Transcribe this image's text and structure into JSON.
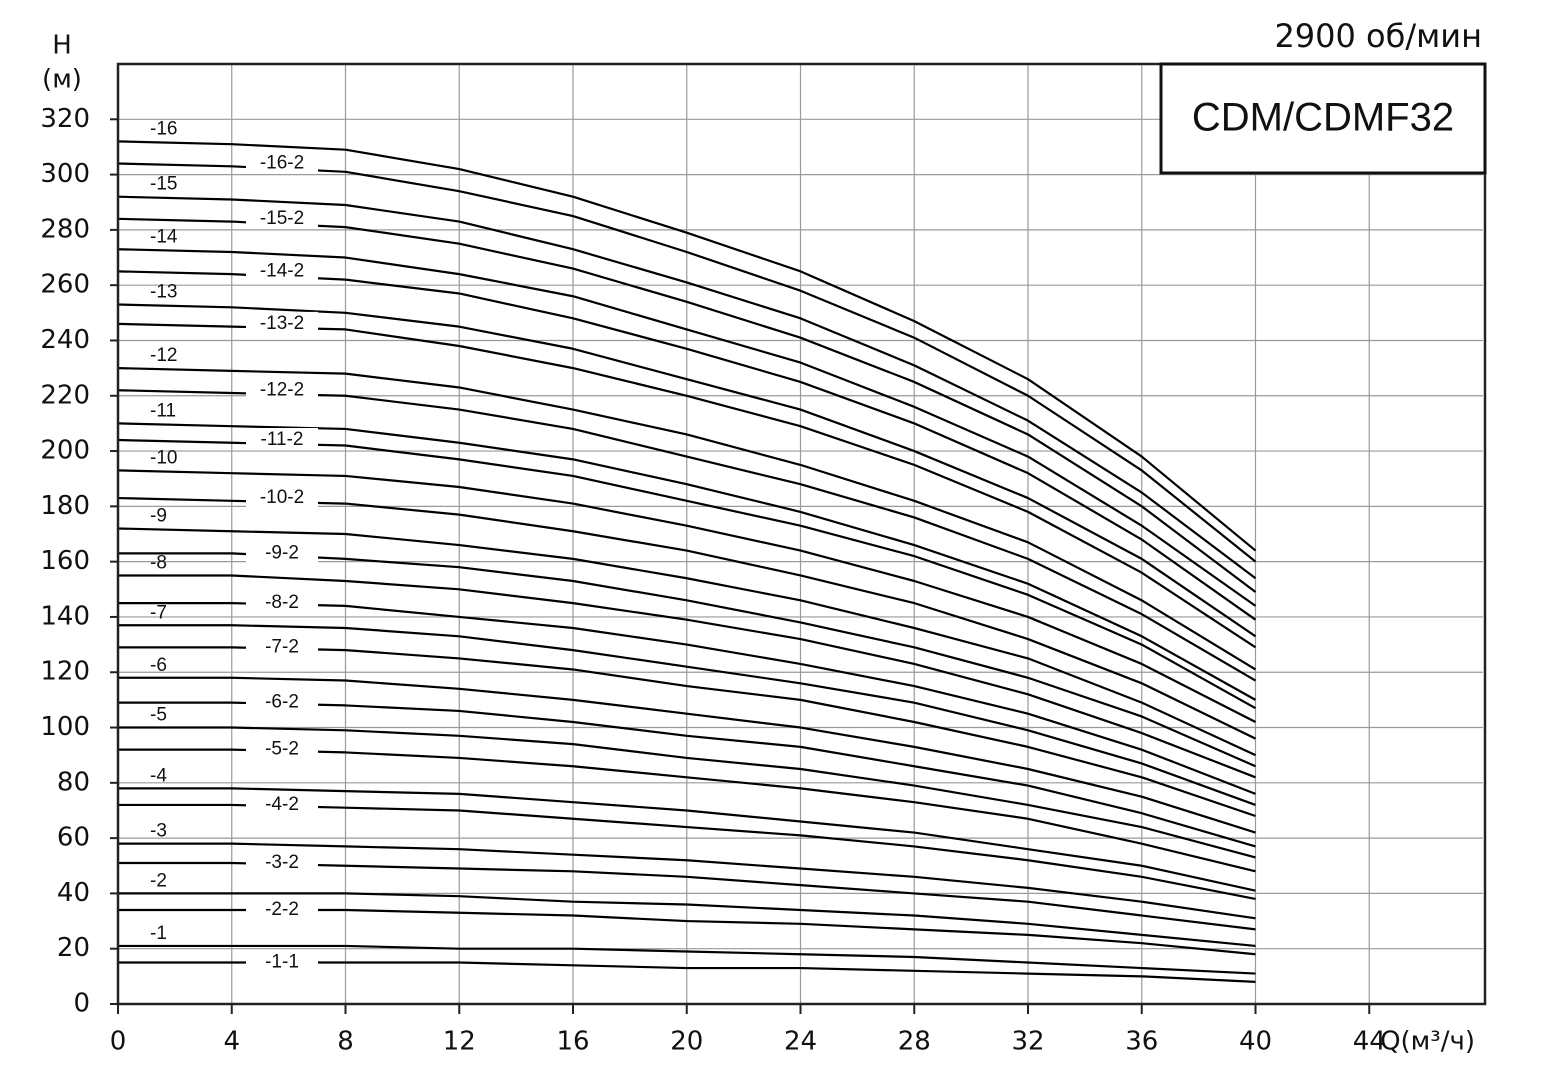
{
  "chart_data": {
    "type": "line",
    "title": "CDM/CDMF32",
    "subtitle": "2900 об/мин",
    "ylabel": [
      "H",
      "(м)"
    ],
    "xlabel": "Q(м³/ч)",
    "x": [
      0,
      4,
      8,
      12,
      16,
      20,
      24,
      28,
      32,
      36,
      40
    ],
    "xlim": [
      0,
      48
    ],
    "xticks": [
      0,
      4,
      8,
      12,
      16,
      20,
      24,
      28,
      32,
      36,
      40,
      44
    ],
    "ylim": [
      0,
      340
    ],
    "yticks": [
      0,
      20,
      40,
      60,
      80,
      100,
      120,
      140,
      160,
      180,
      200,
      220,
      240,
      260,
      280,
      300,
      320
    ],
    "grid": true,
    "series": [
      {
        "name": "-16",
        "color": "#000000",
        "values": [
          312,
          311,
          309,
          302,
          292,
          279,
          265,
          247,
          226,
          198,
          164
        ]
      },
      {
        "name": "-16-2",
        "color": "#000000",
        "values": [
          304,
          303,
          301,
          294,
          285,
          272,
          258,
          241,
          220,
          193,
          160
        ]
      },
      {
        "name": "-15",
        "color": "#000000",
        "values": [
          292,
          291,
          289,
          283,
          273,
          261,
          248,
          231,
          211,
          185,
          154
        ]
      },
      {
        "name": "-15-2",
        "color": "#000000",
        "values": [
          284,
          283,
          281,
          275,
          266,
          254,
          241,
          225,
          206,
          180,
          149
        ]
      },
      {
        "name": "-14",
        "color": "#000000",
        "values": [
          273,
          272,
          270,
          264,
          256,
          244,
          232,
          216,
          198,
          173,
          144
        ]
      },
      {
        "name": "-14-2",
        "color": "#000000",
        "values": [
          265,
          264,
          262,
          257,
          248,
          237,
          225,
          210,
          192,
          168,
          139
        ]
      },
      {
        "name": "-13",
        "color": "#000000",
        "values": [
          253,
          252,
          250,
          245,
          237,
          226,
          215,
          200,
          183,
          161,
          133
        ]
      },
      {
        "name": "-13-2",
        "color": "#000000",
        "values": [
          246,
          245,
          244,
          238,
          230,
          220,
          209,
          195,
          178,
          156,
          129
        ]
      },
      {
        "name": "-12",
        "color": "#000000",
        "values": [
          230,
          229,
          228,
          223,
          215,
          206,
          195,
          182,
          167,
          146,
          121
        ]
      },
      {
        "name": "-12-2",
        "color": "#000000",
        "values": [
          222,
          221,
          220,
          215,
          208,
          198,
          188,
          176,
          161,
          141,
          117
        ]
      },
      {
        "name": "-11",
        "color": "#000000",
        "values": [
          210,
          209,
          208,
          203,
          197,
          188,
          178,
          166,
          152,
          133,
          110
        ]
      },
      {
        "name": "-11-2",
        "color": "#000000",
        "values": [
          204,
          203,
          202,
          197,
          191,
          182,
          173,
          162,
          148,
          130,
          107
        ]
      },
      {
        "name": "-10",
        "color": "#000000",
        "values": [
          193,
          192,
          191,
          187,
          181,
          173,
          164,
          153,
          140,
          123,
          102
        ]
      },
      {
        "name": "-10-2",
        "color": "#000000",
        "values": [
          183,
          182,
          181,
          177,
          171,
          164,
          155,
          145,
          132,
          116,
          96
        ]
      },
      {
        "name": "-9",
        "color": "#000000",
        "values": [
          172,
          171,
          170,
          166,
          161,
          154,
          146,
          136,
          125,
          109,
          90
        ]
      },
      {
        "name": "-9-2",
        "color": "#000000",
        "values": [
          163,
          163,
          161,
          158,
          153,
          146,
          138,
          129,
          118,
          104,
          86
        ]
      },
      {
        "name": "-8",
        "color": "#000000",
        "values": [
          155,
          155,
          153,
          150,
          145,
          139,
          132,
          123,
          112,
          98,
          82
        ]
      },
      {
        "name": "-8-2",
        "color": "#000000",
        "values": [
          145,
          145,
          144,
          140,
          136,
          130,
          123,
          115,
          105,
          92,
          76
        ]
      },
      {
        "name": "-7",
        "color": "#000000",
        "values": [
          137,
          137,
          136,
          133,
          128,
          122,
          116,
          109,
          99,
          87,
          72
        ]
      },
      {
        "name": "-7-2",
        "color": "#000000",
        "values": [
          129,
          129,
          128,
          125,
          121,
          115,
          110,
          102,
          93,
          82,
          68
        ]
      },
      {
        "name": "-6",
        "color": "#000000",
        "values": [
          118,
          118,
          117,
          114,
          110,
          105,
          100,
          93,
          85,
          75,
          62
        ]
      },
      {
        "name": "-6-2",
        "color": "#000000",
        "values": [
          109,
          109,
          108,
          106,
          102,
          97,
          93,
          86,
          79,
          69,
          57
        ]
      },
      {
        "name": "-5",
        "color": "#000000",
        "values": [
          100,
          100,
          99,
          97,
          94,
          89,
          85,
          79,
          72,
          64,
          53
        ]
      },
      {
        "name": "-5-2",
        "color": "#000000",
        "values": [
          92,
          92,
          91,
          89,
          86,
          82,
          78,
          73,
          67,
          58,
          48
        ]
      },
      {
        "name": "-4",
        "color": "#000000",
        "values": [
          78,
          78,
          77,
          76,
          73,
          70,
          66,
          62,
          56,
          50,
          41
        ]
      },
      {
        "name": "-4-2",
        "color": "#000000",
        "values": [
          72,
          72,
          71,
          70,
          67,
          64,
          61,
          57,
          52,
          46,
          38
        ]
      },
      {
        "name": "-3",
        "color": "#000000",
        "values": [
          58,
          58,
          57,
          56,
          54,
          52,
          49,
          46,
          42,
          37,
          31
        ]
      },
      {
        "name": "-3-2",
        "color": "#000000",
        "values": [
          51,
          51,
          50,
          49,
          48,
          46,
          43,
          40,
          37,
          32,
          27
        ]
      },
      {
        "name": "-2",
        "color": "#000000",
        "values": [
          40,
          40,
          40,
          39,
          37,
          36,
          34,
          32,
          29,
          25,
          21
        ]
      },
      {
        "name": "-2-2",
        "color": "#000000",
        "values": [
          34,
          34,
          34,
          33,
          32,
          30,
          29,
          27,
          25,
          22,
          18
        ]
      },
      {
        "name": "-1",
        "color": "#000000",
        "values": [
          21,
          21,
          21,
          20,
          20,
          19,
          18,
          17,
          15,
          13,
          11
        ]
      },
      {
        "name": "-1-1",
        "color": "#000000",
        "values": [
          15,
          15,
          15,
          15,
          14,
          13,
          13,
          12,
          11,
          10,
          8
        ]
      }
    ]
  }
}
